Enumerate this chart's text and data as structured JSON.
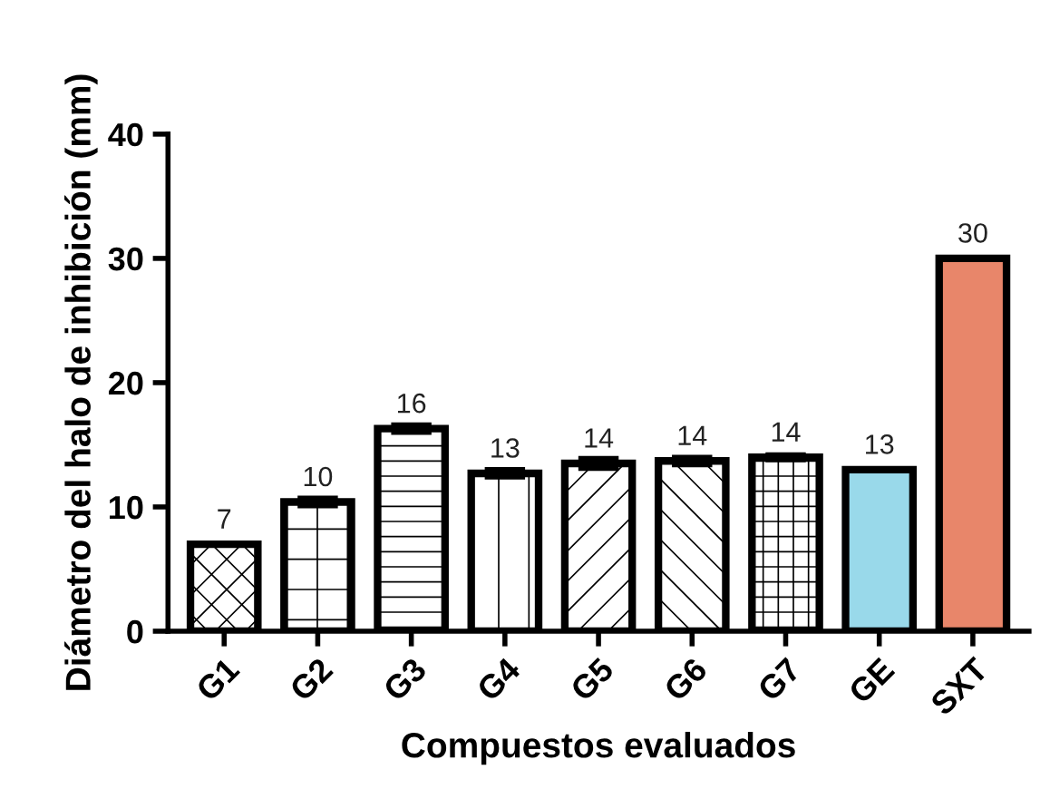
{
  "chart_data": {
    "type": "bar",
    "xlabel": "Compuestos evaluados",
    "ylabel": "Diámetro del halo de inhibición (mm)",
    "categories": [
      "G1",
      "G2",
      "G3",
      "G4",
      "G5",
      "G6",
      "G7",
      "GE",
      "SXT"
    ],
    "values": [
      7,
      10.4,
      16.3,
      12.7,
      13.5,
      13.7,
      14,
      13,
      30
    ],
    "errors": [
      null,
      0.3,
      0.3,
      0.3,
      0.4,
      0.3,
      0.2,
      null,
      null
    ],
    "value_labels": [
      "7",
      "10",
      "16",
      "13",
      "14",
      "14",
      "14",
      "13",
      "30"
    ],
    "colors": [
      "#ffffff",
      "#ffffff",
      "#ffffff",
      "#ffffff",
      "#ffffff",
      "#ffffff",
      "#ffffff",
      "#99d9ea",
      "#e8866a"
    ],
    "ylim": [
      0,
      40
    ],
    "yticks": [
      0,
      10,
      20,
      30,
      40
    ],
    "grid": false,
    "legend": false
  }
}
